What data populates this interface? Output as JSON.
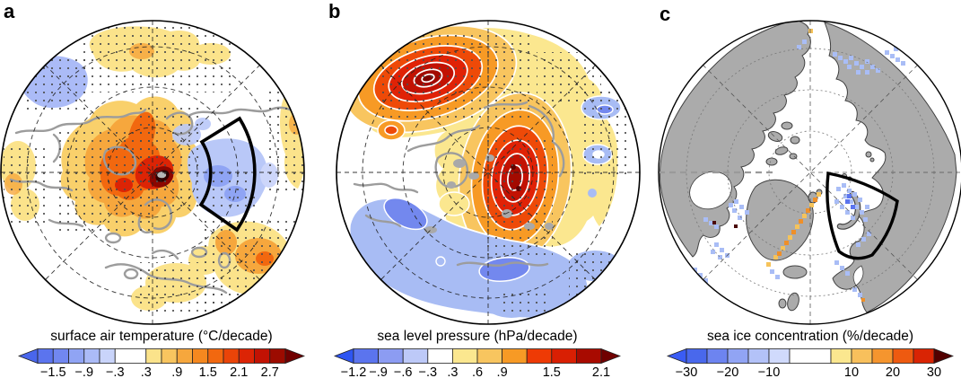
{
  "figure_title": "Arctic trend maps (three polar stereographic panels with color scales)",
  "panels": [
    {
      "label": "a",
      "map_name": "surface-air-temperature-trend-map",
      "colorbar": {
        "title": "surface air temperature (°C/decade)",
        "left_arrow_color": "#4966ec",
        "right_arrow_color": "#700000",
        "segment_colors": [
          "#5b74ee",
          "#7187f0",
          "#90a4f4",
          "#abbbf7",
          "#c9d4fa",
          "#ffffff",
          "#fbe38b",
          "#f8c55f",
          "#f6a73d",
          "#f5881f",
          "#f2680f",
          "#ea4408",
          "#dc2405",
          "#c21203",
          "#9c0b00"
        ],
        "segment_widths": [
          1,
          1,
          1,
          1,
          1,
          2,
          1,
          1,
          1,
          1,
          1,
          1,
          1,
          1,
          1
        ],
        "ticks": [
          {
            "label": "−1.5",
            "u": 1
          },
          {
            "label": "−.9",
            "u": 3
          },
          {
            "label": "−.3",
            "u": 5
          },
          {
            "label": ".3",
            "u": 7
          },
          {
            "label": ".9",
            "u": 9
          },
          {
            "label": "1.5",
            "u": 11
          },
          {
            "label": "2.1",
            "u": 13
          },
          {
            "label": "2.7",
            "u": 15
          }
        ]
      }
    },
    {
      "label": "b",
      "map_name": "sea-level-pressure-trend-map",
      "colorbar": {
        "title": "sea level pressure (hPa/decade)",
        "left_arrow_color": "#2e55f2",
        "right_arrow_color": "#700000",
        "segment_colors": [
          "#5b74ee",
          "#8c9cf2",
          "#bdc9f8",
          "#ffffff",
          "#fbe78f",
          "#f8c55f",
          "#f79a25",
          "#ee3a05",
          "#d91f03",
          "#a80a00"
        ],
        "segment_widths": [
          1,
          1,
          1,
          1,
          1,
          1,
          1,
          1,
          1,
          1
        ],
        "ticks": [
          {
            "label": "−1.2",
            "u": 0
          },
          {
            "label": "−.9",
            "u": 1
          },
          {
            "label": "−.6",
            "u": 2
          },
          {
            "label": "−.3",
            "u": 3
          },
          {
            "label": ".3",
            "u": 4
          },
          {
            "label": ".6",
            "u": 5
          },
          {
            "label": ".9",
            "u": 6
          },
          {
            "label": "1.5",
            "u": 8
          },
          {
            "label": "2.1",
            "u": 10
          }
        ]
      }
    },
    {
      "label": "c",
      "map_name": "sea-ice-concentration-trend-map",
      "colorbar": {
        "title": "sea ice concentration (%/decade)",
        "left_arrow_color": "#3a5cf4",
        "right_arrow_color": "#520000",
        "segment_colors": [
          "#4968ec",
          "#6d84f0",
          "#91a4f4",
          "#b3c2f8",
          "#d0dafc",
          "#ffffff",
          "#fbe78f",
          "#f8c05c",
          "#f5952e",
          "#ee5a10",
          "#d92404"
        ],
        "segment_widths": [
          1,
          1,
          1,
          1,
          1,
          2,
          1,
          1,
          1,
          1,
          1
        ],
        "ticks": [
          {
            "label": "−30",
            "u": 0
          },
          {
            "label": "−20",
            "u": 2
          },
          {
            "label": "−10",
            "u": 4
          },
          {
            "label": "10",
            "u": 8
          },
          {
            "label": "20",
            "u": 10
          },
          {
            "label": "30",
            "u": 12
          }
        ]
      }
    }
  ],
  "map_colors": {
    "coastline_gray": "#9c9c9c",
    "land_fill_panel_c": "#ababab",
    "land_outline_panel_c": "#404040",
    "stipple_dot": "#4d4d4d",
    "sector_outline": "#000000",
    "contour_line_panel_b": "#ffffff",
    "graticule": "#222222",
    "dark_warming_core": "#2f0000"
  },
  "chart_data": [
    {
      "panel": "a",
      "type": "heatmap",
      "projection": "north polar stereographic",
      "title": "surface air temperature",
      "units": "°C/decade",
      "levels": [
        -1.8,
        -1.5,
        -1.2,
        -0.9,
        -0.6,
        -0.3,
        0.3,
        0.6,
        0.9,
        1.2,
        1.5,
        1.8,
        2.1,
        2.4,
        2.7,
        3.0
      ],
      "colorbar_ticks": [
        -1.5,
        -0.9,
        -0.3,
        0.3,
        0.9,
        1.5,
        2.1,
        2.7
      ],
      "out_of_range_arrows": [
        -1.8,
        3.0
      ],
      "overlays": [
        "gray coastlines",
        "dashed graticule (3 latitude rings, 8 meridians)",
        "gray stippling dots",
        "thick black sector outline right of center"
      ],
      "visible_pattern": "broad yellow-orange-red warming over the central Arctic with a dark red / near-black maximum just right of center; blue cooling patch inside the black sector; yellow/orange stippled patches at top, right rim and bottom right; light blue patch upper left"
    },
    {
      "panel": "b",
      "type": "heatmap",
      "projection": "north polar stereographic",
      "title": "sea level pressure",
      "units": "hPa/decade",
      "levels": [
        -1.2,
        -0.9,
        -0.6,
        -0.3,
        0.3,
        0.6,
        0.9,
        1.2,
        1.5,
        1.8,
        2.1
      ],
      "colorbar_ticks": [
        -1.2,
        -0.9,
        -0.6,
        -0.3,
        0.3,
        0.6,
        0.9,
        1.5,
        2.1
      ],
      "out_of_range_arrows": [
        -1.2,
        2.1
      ],
      "overlays": [
        "white contour rings around pressure centers",
        "gray coastlines",
        "dashed graticule",
        "gray stippling dots"
      ],
      "visible_pattern": "two strong positive centers (white-contoured red bullseyes): one upper-left, one elongated right of center; broad yellow positive field across the top; light blue negative region across the bottom with darker blue cores; small blue patches on the right rim"
    },
    {
      "panel": "c",
      "type": "heatmap",
      "projection": "north polar stereographic",
      "title": "sea ice concentration",
      "units": "%/decade",
      "levels": [
        -30,
        -25,
        -20,
        -15,
        -10,
        -5,
        5,
        10,
        15,
        20,
        25,
        30
      ],
      "colorbar_ticks": [
        -30,
        -20,
        -10,
        10,
        20,
        30
      ],
      "out_of_range_arrows": [
        -30,
        30
      ],
      "overlays": [
        "solid gray land with dark outlines",
        "dotted/dashed graticule",
        "thick black sector outline over Barents–Kara area",
        "pixelated trend cells"
      ],
      "visible_pattern": "blue (declining) ice cells inside the black sector and along Arctic coasts (Chukchi, Baffin, Hudson, Labrador, Baltic); alternating yellow/orange cells along the east Greenland ice edge; ocean elsewhere white"
    }
  ]
}
